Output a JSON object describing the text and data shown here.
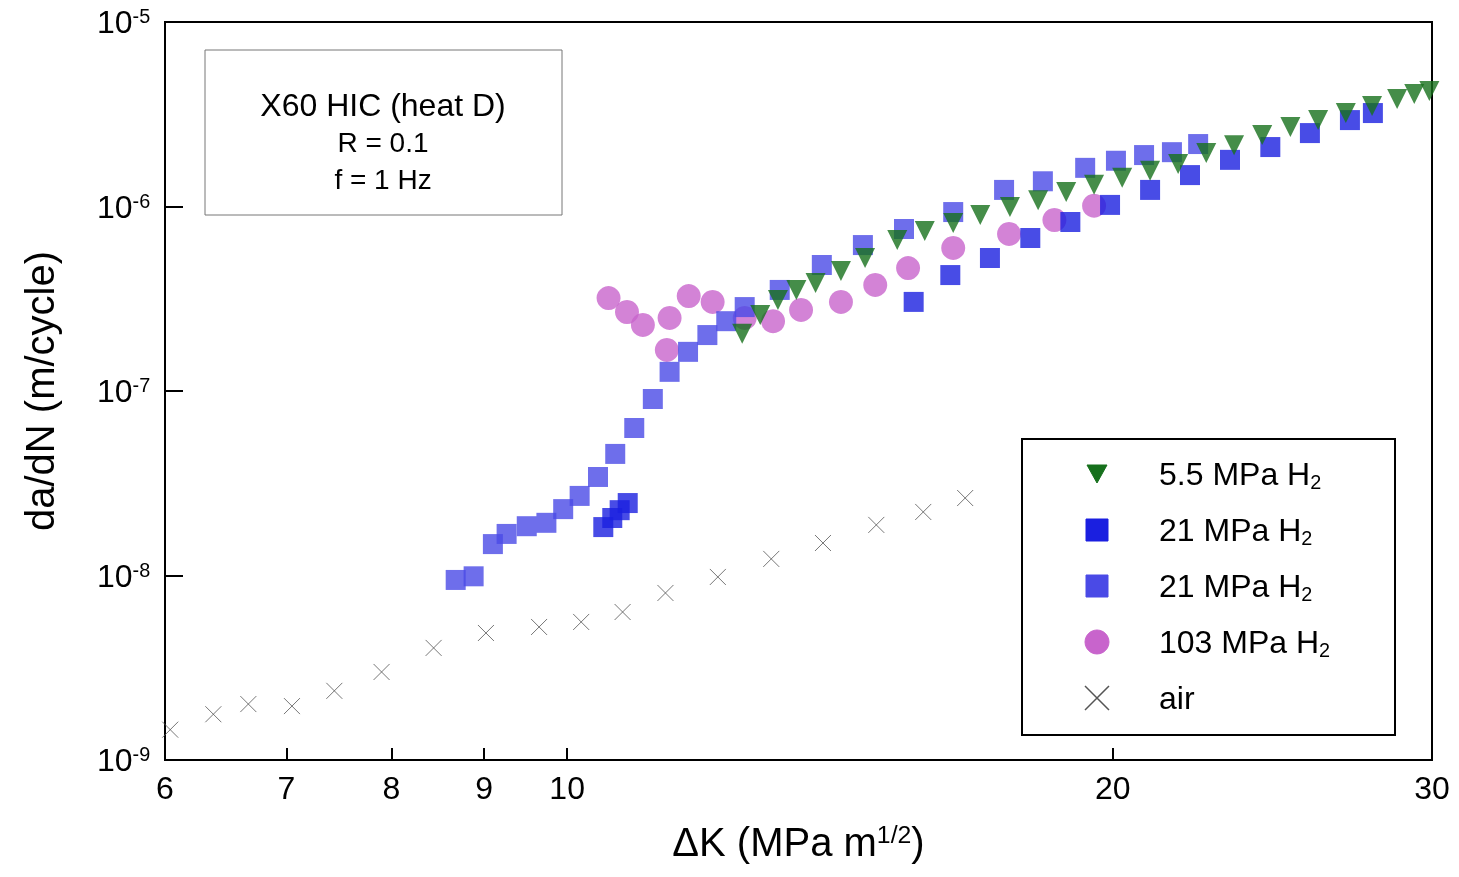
{
  "chart_data": {
    "type": "scatter",
    "xlabel": "ΔK (MPa m$^{1/2}$)",
    "ylabel": "da/dN (m/cycle)",
    "annotations": [
      "X60 HIC (heat D)",
      "R = 0.1",
      "f = 1 Hz"
    ],
    "log": "xy",
    "grid": false,
    "legend": "bottom right",
    "xlim": [
      6,
      30
    ],
    "xticks": [
      6,
      7,
      8,
      9,
      10,
      20,
      30
    ],
    "ylim": [
      1e-09,
      1e-05
    ],
    "yticks": [
      {
        "value": 1e-09,
        "label": "10$^{-9}$"
      },
      {
        "value": 1e-08,
        "label": "10$^{-8}$"
      },
      {
        "value": 1e-07,
        "label": "10$^{-7}$"
      },
      {
        "value": 1e-06,
        "label": "10$^{-6}$"
      },
      {
        "value": 1e-05,
        "label": "10$^{-5}$"
      }
    ],
    "series": [
      {
        "name": "5.5 MPa H$_{2}$",
        "color": "#16701c",
        "marker": "triangle",
        "x": [
          12.49,
          12.78,
          13.07,
          13.38,
          13.71,
          14.16,
          14.6,
          15.21,
          15.75,
          16.33,
          16.9,
          17.55,
          18.19,
          18.85,
          19.53,
          20.24,
          20.97,
          21.73,
          22.52,
          23.33,
          24.18,
          25.06,
          25.96,
          26.89,
          27.8,
          28.7,
          29.33,
          29.9
        ],
        "values": [
          2.04e-07,
          2.58e-07,
          3.11e-07,
          3.53e-07,
          3.85e-07,
          4.47e-07,
          5.26e-07,
          6.58e-07,
          7.36e-07,
          8.14e-07,
          8.99e-07,
          9.93e-07,
          1.08e-06,
          1.2e-06,
          1.31e-06,
          1.43e-06,
          1.56e-06,
          1.7e-06,
          1.95e-06,
          2.15e-06,
          2.44e-06,
          2.7e-06,
          2.94e-06,
          3.21e-06,
          3.51e-06,
          3.83e-06,
          4.07e-06,
          4.23e-06
        ]
      },
      {
        "name": "21 MPa H$_{2}$",
        "color": "#1a1fe0",
        "marker": "square",
        "x": [
          10.47,
          10.59,
          10.69,
          10.8,
          15.53,
          16.27,
          17.11,
          18.01,
          18.95,
          19.93,
          20.97,
          22.06,
          23.21,
          24.43,
          25.69,
          27.03,
          27.83
        ],
        "values": [
          1.83e-08,
          2.05e-08,
          2.26e-08,
          2.47e-08,
          3.04e-07,
          4.25e-07,
          5.26e-07,
          6.75e-07,
          8.24e-07,
          1.02e-06,
          1.23e-06,
          1.48e-06,
          1.79e-06,
          2.1e-06,
          2.5e-06,
          2.94e-06,
          3.21e-06
        ]
      },
      {
        "name": "21 MPa H$_{2}$",
        "color": "#4a4ae6",
        "marker": "square",
        "x": [
          8.68,
          8.88,
          9.1,
          9.26,
          9.5,
          9.74,
          9.95,
          10.16,
          10.4,
          10.63,
          10.89,
          11.15,
          11.39,
          11.66,
          11.95,
          12.24,
          12.53,
          13.1,
          13.82,
          14.56,
          15.34,
          16.33,
          17.42,
          18.3,
          19.31,
          20.08,
          20.81,
          21.56,
          22.29
        ],
        "values": [
          9.46e-09,
          9.9e-09,
          1.48e-08,
          1.68e-08,
          1.85e-08,
          1.93e-08,
          2.29e-08,
          2.7e-08,
          3.42e-08,
          4.56e-08,
          6.3e-08,
          9.05e-08,
          1.27e-07,
          1.63e-07,
          2.01e-07,
          2.39e-07,
          2.85e-07,
          3.53e-07,
          4.82e-07,
          6.18e-07,
          7.55e-07,
          9.33e-07,
          1.23e-06,
          1.37e-06,
          1.62e-06,
          1.77e-06,
          1.9e-06,
          1.97e-06,
          2.18e-06
        ]
      },
      {
        "name": "103 MPa H$_{2}$",
        "color": "#c864cc",
        "marker": "circle",
        "x": [
          10.54,
          10.79,
          11.01,
          11.35,
          11.39,
          11.67,
          12.03,
          12.53,
          12.99,
          13.46,
          14.16,
          14.79,
          15.42,
          16.33,
          17.53,
          18.57,
          19.53
        ],
        "values": [
          3.19e-07,
          2.68e-07,
          2.28e-07,
          1.67e-07,
          2.49e-07,
          3.27e-07,
          3.04e-07,
          2.49e-07,
          2.39e-07,
          2.75e-07,
          3.04e-07,
          3.76e-07,
          4.64e-07,
          5.96e-07,
          7.1e-07,
          8.45e-07,
          1.01e-06
        ]
      },
      {
        "name": "air",
        "color": "#555555",
        "marker": "cross",
        "x": [
          6.04,
          6.38,
          6.67,
          7.05,
          7.44,
          7.9,
          8.44,
          9.02,
          9.65,
          10.18,
          10.73,
          11.33,
          12.11,
          12.96,
          13.84,
          14.81,
          15.72,
          16.58
        ],
        "values": [
          1.46e-09,
          1.77e-09,
          2.01e-09,
          1.96e-09,
          2.37e-09,
          3e-09,
          4.05e-09,
          4.88e-09,
          5.26e-09,
          5.6e-09,
          6.34e-09,
          8.04e-09,
          9.82e-09,
          1.23e-08,
          1.5e-08,
          1.88e-08,
          2.21e-08,
          2.63e-08
        ]
      }
    ]
  }
}
